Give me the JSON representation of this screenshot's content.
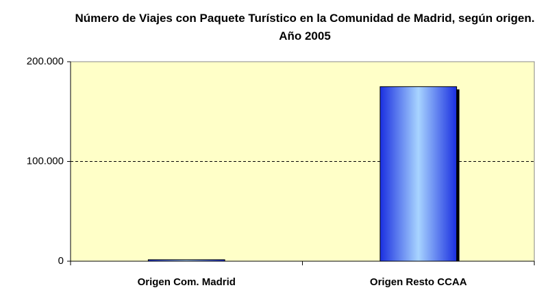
{
  "chart_data": {
    "type": "bar",
    "title": "Número de Viajes con Paquete Turístico en la Comunidad de Madrid, según origen. Año 2005",
    "categories": [
      "Origen Com. Madrid",
      "Origen Resto CCAA"
    ],
    "values": [
      1500,
      175000
    ],
    "color": "#3355ee",
    "ylim": [
      0,
      200000
    ],
    "yticks": [
      0,
      {
        "value": 100000,
        "label": "100.000"
      },
      {
        "value": 200000,
        "label": "200.000"
      }
    ],
    "grid": true
  }
}
